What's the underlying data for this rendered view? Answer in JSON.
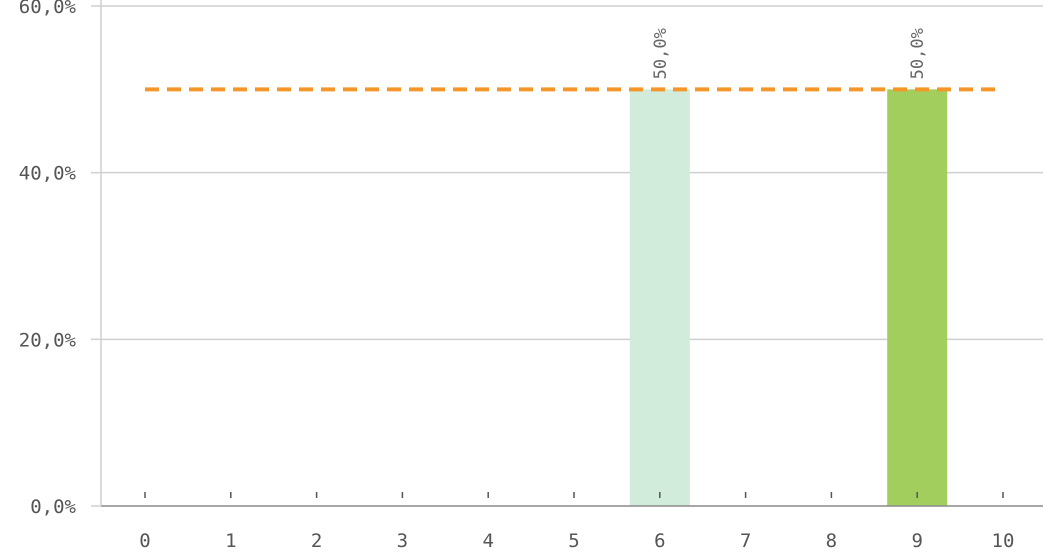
{
  "chart_data": {
    "type": "bar",
    "categories": [
      "0",
      "1",
      "2",
      "3",
      "4",
      "5",
      "6",
      "7",
      "8",
      "9",
      "10"
    ],
    "values": [
      0,
      0,
      0,
      0,
      0,
      0,
      50.0,
      0,
      0,
      50.0,
      0
    ],
    "bar_colors": {
      "6": "#d2ecdc",
      "9": "#a2ce5e"
    },
    "data_labels": {
      "6": "50,0%",
      "9": "50,0%"
    },
    "y_ticks": [
      {
        "value": 0,
        "label": "0,0%"
      },
      {
        "value": 20,
        "label": "20,0%"
      },
      {
        "value": 40,
        "label": "40,0%"
      },
      {
        "value": 60,
        "label": "60,0%"
      }
    ],
    "ylim": [
      0,
      60
    ],
    "reference_line": {
      "value": 50.0,
      "color": "#f5962a",
      "style": "dashed"
    },
    "grid": true,
    "title": "",
    "xlabel": "",
    "ylabel": ""
  }
}
